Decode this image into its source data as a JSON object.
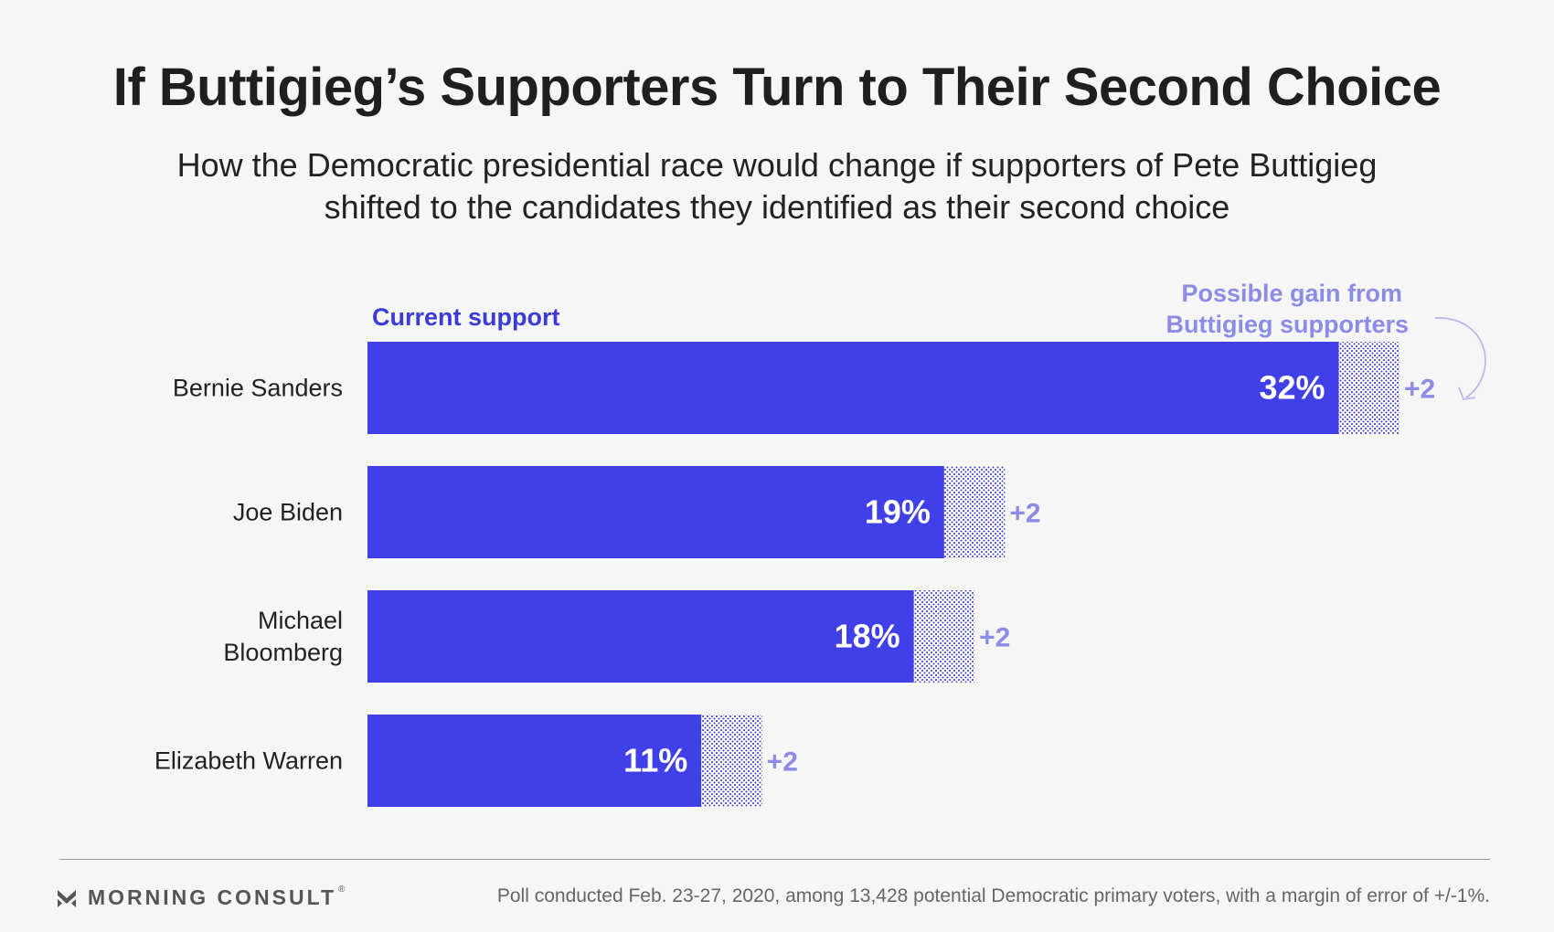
{
  "title": "If Buttigieg’s Supporters Turn to Their Second Choice",
  "subtitle": "How the Democratic presidential race would change if supporters of Pete Buttigieg shifted to the candidates they identified as their second choice",
  "legend": {
    "current": "Current support",
    "gain_line1": "Possible gain from",
    "gain_line2": "Buttigieg supporters"
  },
  "colors": {
    "bar": "#4040e8",
    "gain_dots": "#3a3ad6",
    "gain_text": "#8c8ce6",
    "current_label": "#3b3bd6"
  },
  "chart_data": {
    "type": "bar",
    "orientation": "horizontal",
    "stacked": true,
    "categories": [
      [
        "Bernie Sanders"
      ],
      [
        "Joe Biden"
      ],
      [
        "Michael",
        "Bloomberg"
      ],
      [
        "Elizabeth Warren"
      ]
    ],
    "series": [
      {
        "name": "Current support",
        "values": [
          32,
          19,
          18,
          11
        ],
        "labels": [
          "32%",
          "19%",
          "18%",
          "11%"
        ]
      },
      {
        "name": "Possible gain from Buttigieg supporters",
        "values": [
          2,
          2,
          2,
          2
        ],
        "labels": [
          "+2",
          "+2",
          "+2",
          "+2"
        ]
      }
    ],
    "xlim": [
      0,
      34
    ]
  },
  "footer": {
    "logo_text": "MORNING CONSULT",
    "logo_icon": "morning-consult-m-icon",
    "source": "Poll conducted Feb. 23-27, 2020, among 13,428 potential Democratic primary voters, with a margin of error of +/-1%."
  }
}
